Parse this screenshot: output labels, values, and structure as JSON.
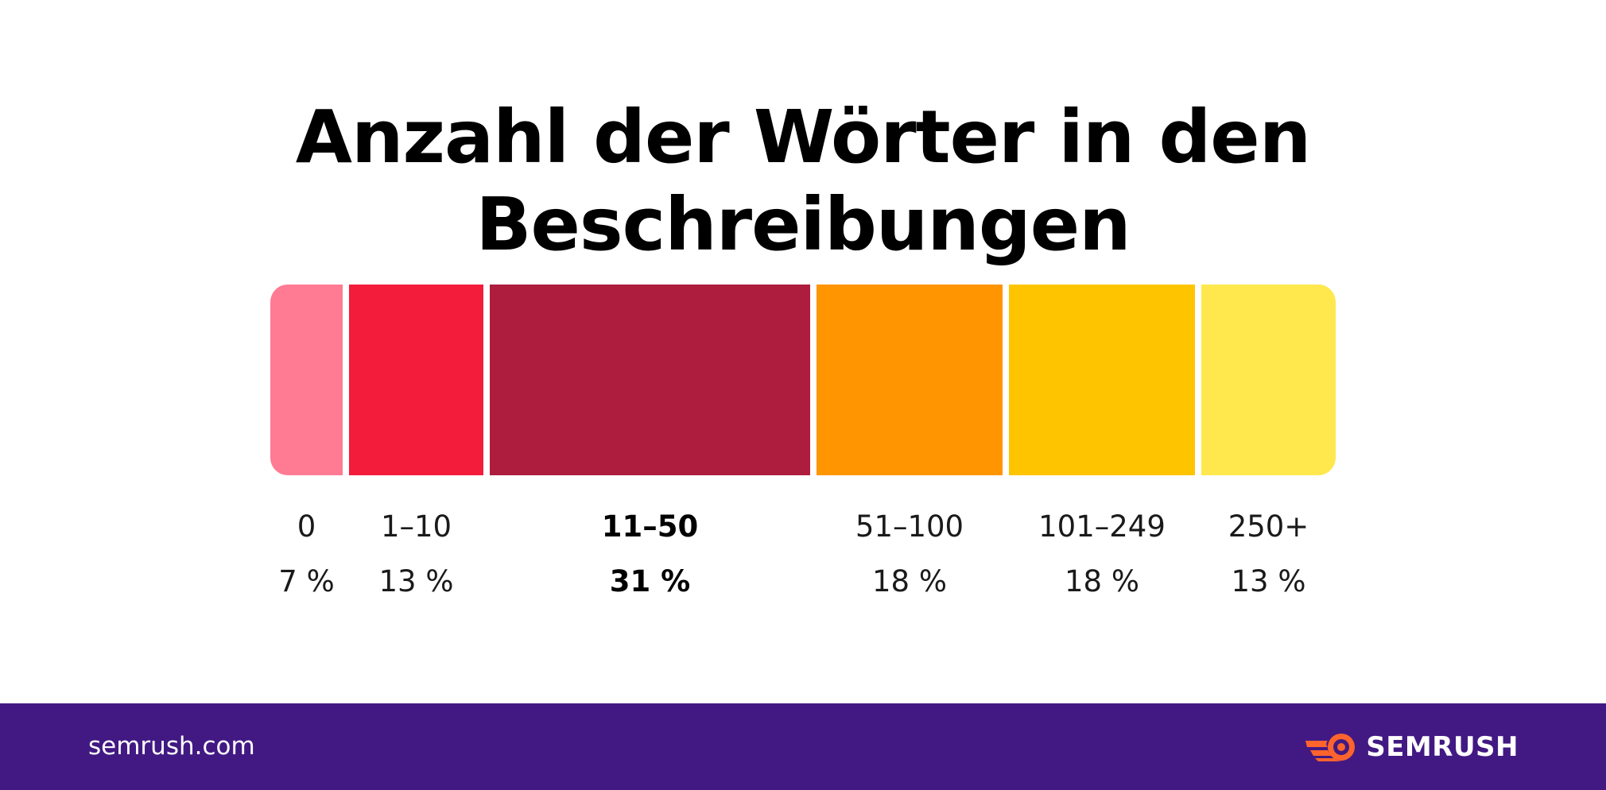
{
  "chart_data": {
    "type": "bar",
    "orientation": "horizontal-stacked-100",
    "title": "Anzahl der Wörter in den Beschreibungen",
    "categories": [
      "0",
      "1–10",
      "11–50",
      "51–100",
      "101–249",
      "250+"
    ],
    "values": [
      7,
      13,
      31,
      18,
      18,
      13
    ],
    "value_labels": [
      "7 %",
      "13 %",
      "31 %",
      "18 %",
      "18 %",
      "13 %"
    ],
    "highlight_index": 2,
    "colors": [
      "#FF7A93",
      "#F41C3B",
      "#AE1C3E",
      "#FF9500",
      "#FFC400",
      "#FFE84D"
    ],
    "total": 100
  },
  "footer": {
    "url": "semrush.com",
    "brand": "SEMRUSH",
    "background": "#421983",
    "logo_icon": "semrush-fireball-icon",
    "logo_color": "#FF642D"
  }
}
